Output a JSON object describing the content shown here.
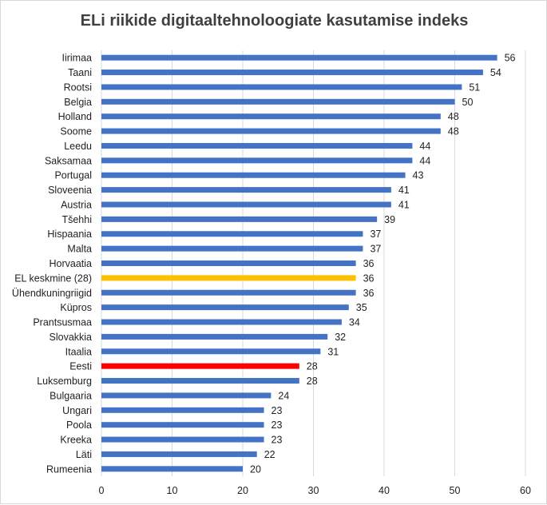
{
  "chart_data": {
    "type": "bar",
    "orientation": "horizontal",
    "title": "ELi riikide digitaaltehnoloogiate kasutamise indeks",
    "xlabel": "",
    "ylabel": "",
    "xlim": [
      0,
      60
    ],
    "ticks": [
      0,
      10,
      20,
      30,
      40,
      50,
      60
    ],
    "grid": true,
    "categories": [
      "Iirimaa",
      "Taani",
      "Rootsi",
      "Belgia",
      "Holland",
      "Soome",
      "Leedu",
      "Saksamaa",
      "Portugal",
      "Sloveenia",
      "Austria",
      "Tšehhi",
      "Hispaania",
      "Malta",
      "Horvaatia",
      "EL  keskmine (28)",
      "Ühendkuningriigid",
      "Küpros",
      "Prantsusmaa",
      "Slovakkia",
      "Itaalia",
      "Eesti",
      "Luksemburg",
      "Bulgaaria",
      "Ungari",
      "Poola",
      "Kreeka",
      "Läti",
      "Rumeenia"
    ],
    "values": [
      56,
      54,
      51,
      50,
      48,
      48,
      44,
      44,
      43,
      41,
      41,
      39,
      37,
      37,
      36,
      36,
      36,
      35,
      34,
      32,
      31,
      28,
      28,
      24,
      23,
      23,
      23,
      22,
      20
    ],
    "colors": {
      "default": "#4472c4",
      "highlight_average": "#ffc000",
      "highlight_estonia": "#ff0000"
    },
    "highlights": {
      "EL  keskmine (28)": "highlight_average",
      "Eesti": "highlight_estonia"
    }
  }
}
